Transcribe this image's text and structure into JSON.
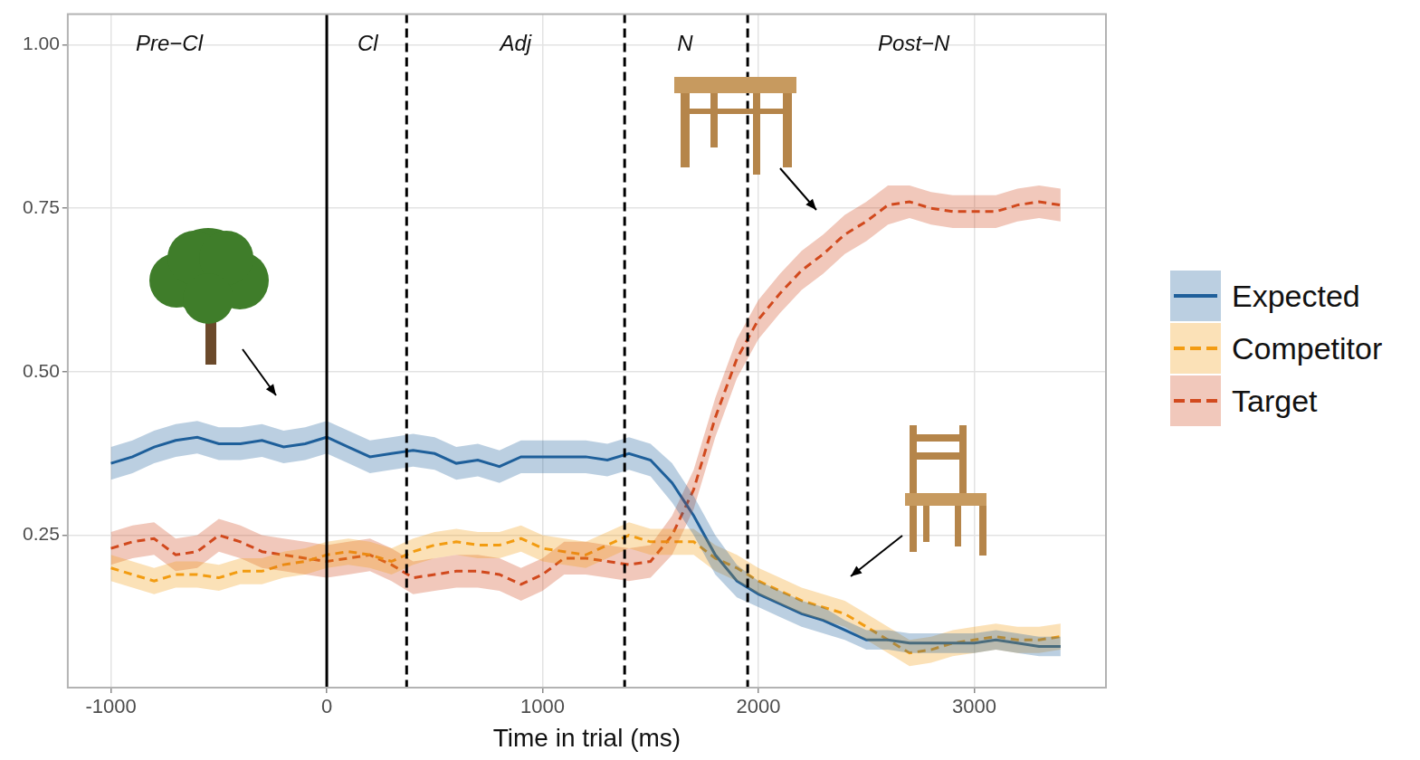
{
  "chart_data": {
    "type": "line",
    "x_label": "Time in trial (ms)",
    "x": [
      -1000,
      -900,
      -800,
      -700,
      -600,
      -500,
      -400,
      -300,
      -200,
      -100,
      0,
      100,
      200,
      300,
      400,
      500,
      600,
      700,
      800,
      900,
      1000,
      1100,
      1200,
      1300,
      1400,
      1500,
      1600,
      1700,
      1800,
      1900,
      2000,
      2100,
      2200,
      2300,
      2400,
      2500,
      2600,
      2700,
      2800,
      2900,
      3000,
      3100,
      3200,
      3300,
      3400
    ],
    "series": [
      {
        "name": "Expected",
        "color": "#1f5f9a",
        "line_style": "solid",
        "values": [
          0.36,
          0.37,
          0.385,
          0.395,
          0.4,
          0.39,
          0.39,
          0.395,
          0.385,
          0.39,
          0.4,
          0.385,
          0.37,
          0.375,
          0.38,
          0.375,
          0.36,
          0.365,
          0.355,
          0.37,
          0.37,
          0.37,
          0.37,
          0.365,
          0.375,
          0.365,
          0.33,
          0.28,
          0.22,
          0.18,
          0.16,
          0.145,
          0.13,
          0.12,
          0.105,
          0.09,
          0.09,
          0.085,
          0.085,
          0.085,
          0.085,
          0.09,
          0.085,
          0.08,
          0.08
        ],
        "error": [
          0.025,
          0.025,
          0.025,
          0.025,
          0.025,
          0.025,
          0.025,
          0.025,
          0.025,
          0.025,
          0.025,
          0.025,
          0.025,
          0.025,
          0.025,
          0.025,
          0.025,
          0.025,
          0.025,
          0.025,
          0.025,
          0.025,
          0.025,
          0.025,
          0.025,
          0.025,
          0.03,
          0.03,
          0.03,
          0.025,
          0.02,
          0.02,
          0.02,
          0.02,
          0.015,
          0.015,
          0.015,
          0.015,
          0.015,
          0.015,
          0.015,
          0.015,
          0.015,
          0.015,
          0.015
        ]
      },
      {
        "name": "Competitor",
        "color": "#f39c12",
        "line_style": "dashed",
        "values": [
          0.2,
          0.19,
          0.18,
          0.19,
          0.19,
          0.185,
          0.195,
          0.195,
          0.205,
          0.21,
          0.22,
          0.225,
          0.22,
          0.21,
          0.225,
          0.235,
          0.24,
          0.235,
          0.235,
          0.245,
          0.23,
          0.225,
          0.22,
          0.235,
          0.25,
          0.24,
          0.24,
          0.24,
          0.215,
          0.2,
          0.18,
          0.165,
          0.15,
          0.14,
          0.13,
          0.11,
          0.09,
          0.07,
          0.075,
          0.085,
          0.09,
          0.095,
          0.09,
          0.09,
          0.095
        ],
        "error": [
          0.02,
          0.02,
          0.02,
          0.02,
          0.02,
          0.02,
          0.02,
          0.02,
          0.02,
          0.02,
          0.02,
          0.02,
          0.02,
          0.02,
          0.02,
          0.02,
          0.02,
          0.02,
          0.02,
          0.02,
          0.02,
          0.02,
          0.02,
          0.02,
          0.02,
          0.02,
          0.02,
          0.02,
          0.02,
          0.02,
          0.02,
          0.02,
          0.02,
          0.02,
          0.02,
          0.02,
          0.02,
          0.02,
          0.02,
          0.02,
          0.02,
          0.02,
          0.02,
          0.02,
          0.02
        ]
      },
      {
        "name": "Target",
        "color": "#d24a1e",
        "line_style": "dashed",
        "values": [
          0.23,
          0.24,
          0.245,
          0.22,
          0.225,
          0.25,
          0.24,
          0.225,
          0.22,
          0.215,
          0.21,
          0.215,
          0.22,
          0.205,
          0.185,
          0.19,
          0.195,
          0.195,
          0.19,
          0.175,
          0.19,
          0.215,
          0.215,
          0.21,
          0.205,
          0.21,
          0.25,
          0.32,
          0.43,
          0.52,
          0.58,
          0.62,
          0.655,
          0.68,
          0.71,
          0.73,
          0.755,
          0.76,
          0.75,
          0.745,
          0.745,
          0.745,
          0.755,
          0.76,
          0.755
        ],
        "error": [
          0.025,
          0.025,
          0.025,
          0.025,
          0.025,
          0.025,
          0.025,
          0.025,
          0.025,
          0.025,
          0.025,
          0.025,
          0.025,
          0.025,
          0.025,
          0.025,
          0.025,
          0.025,
          0.025,
          0.025,
          0.025,
          0.025,
          0.025,
          0.025,
          0.025,
          0.025,
          0.03,
          0.03,
          0.03,
          0.03,
          0.03,
          0.03,
          0.03,
          0.03,
          0.03,
          0.03,
          0.03,
          0.025,
          0.025,
          0.025,
          0.025,
          0.025,
          0.025,
          0.025,
          0.025
        ]
      }
    ],
    "xlim": [
      -1200,
      3610
    ],
    "xticks": [
      -1000,
      0,
      1000,
      2000,
      3000
    ],
    "ylim": [
      0.017,
      1.047
    ],
    "yticks": [
      0.25,
      {
        "value": 0.5,
        "label": "0.50"
      },
      0.75,
      {
        "value": 1,
        "label": "1.00"
      }
    ],
    "vlines": [
      {
        "x": 0,
        "line_style": "solid"
      },
      {
        "x": 370,
        "line_style": "dashed"
      },
      {
        "x": 1380,
        "line_style": "dashed"
      },
      {
        "x": 1950,
        "line_style": "dashed"
      }
    ],
    "annotations": [
      {
        "text": "Pre−Cl",
        "x": -730,
        "y": 1.0
      },
      {
        "text": "Cl",
        "x": 190,
        "y": 1.0
      },
      {
        "text": "Adj",
        "x": 875,
        "y": 1.0
      },
      {
        "text": "N",
        "x": 1660,
        "y": 1.0
      },
      {
        "text": "Post−N",
        "x": 2720,
        "y": 1.0
      }
    ],
    "grid": true,
    "legend": "right"
  }
}
